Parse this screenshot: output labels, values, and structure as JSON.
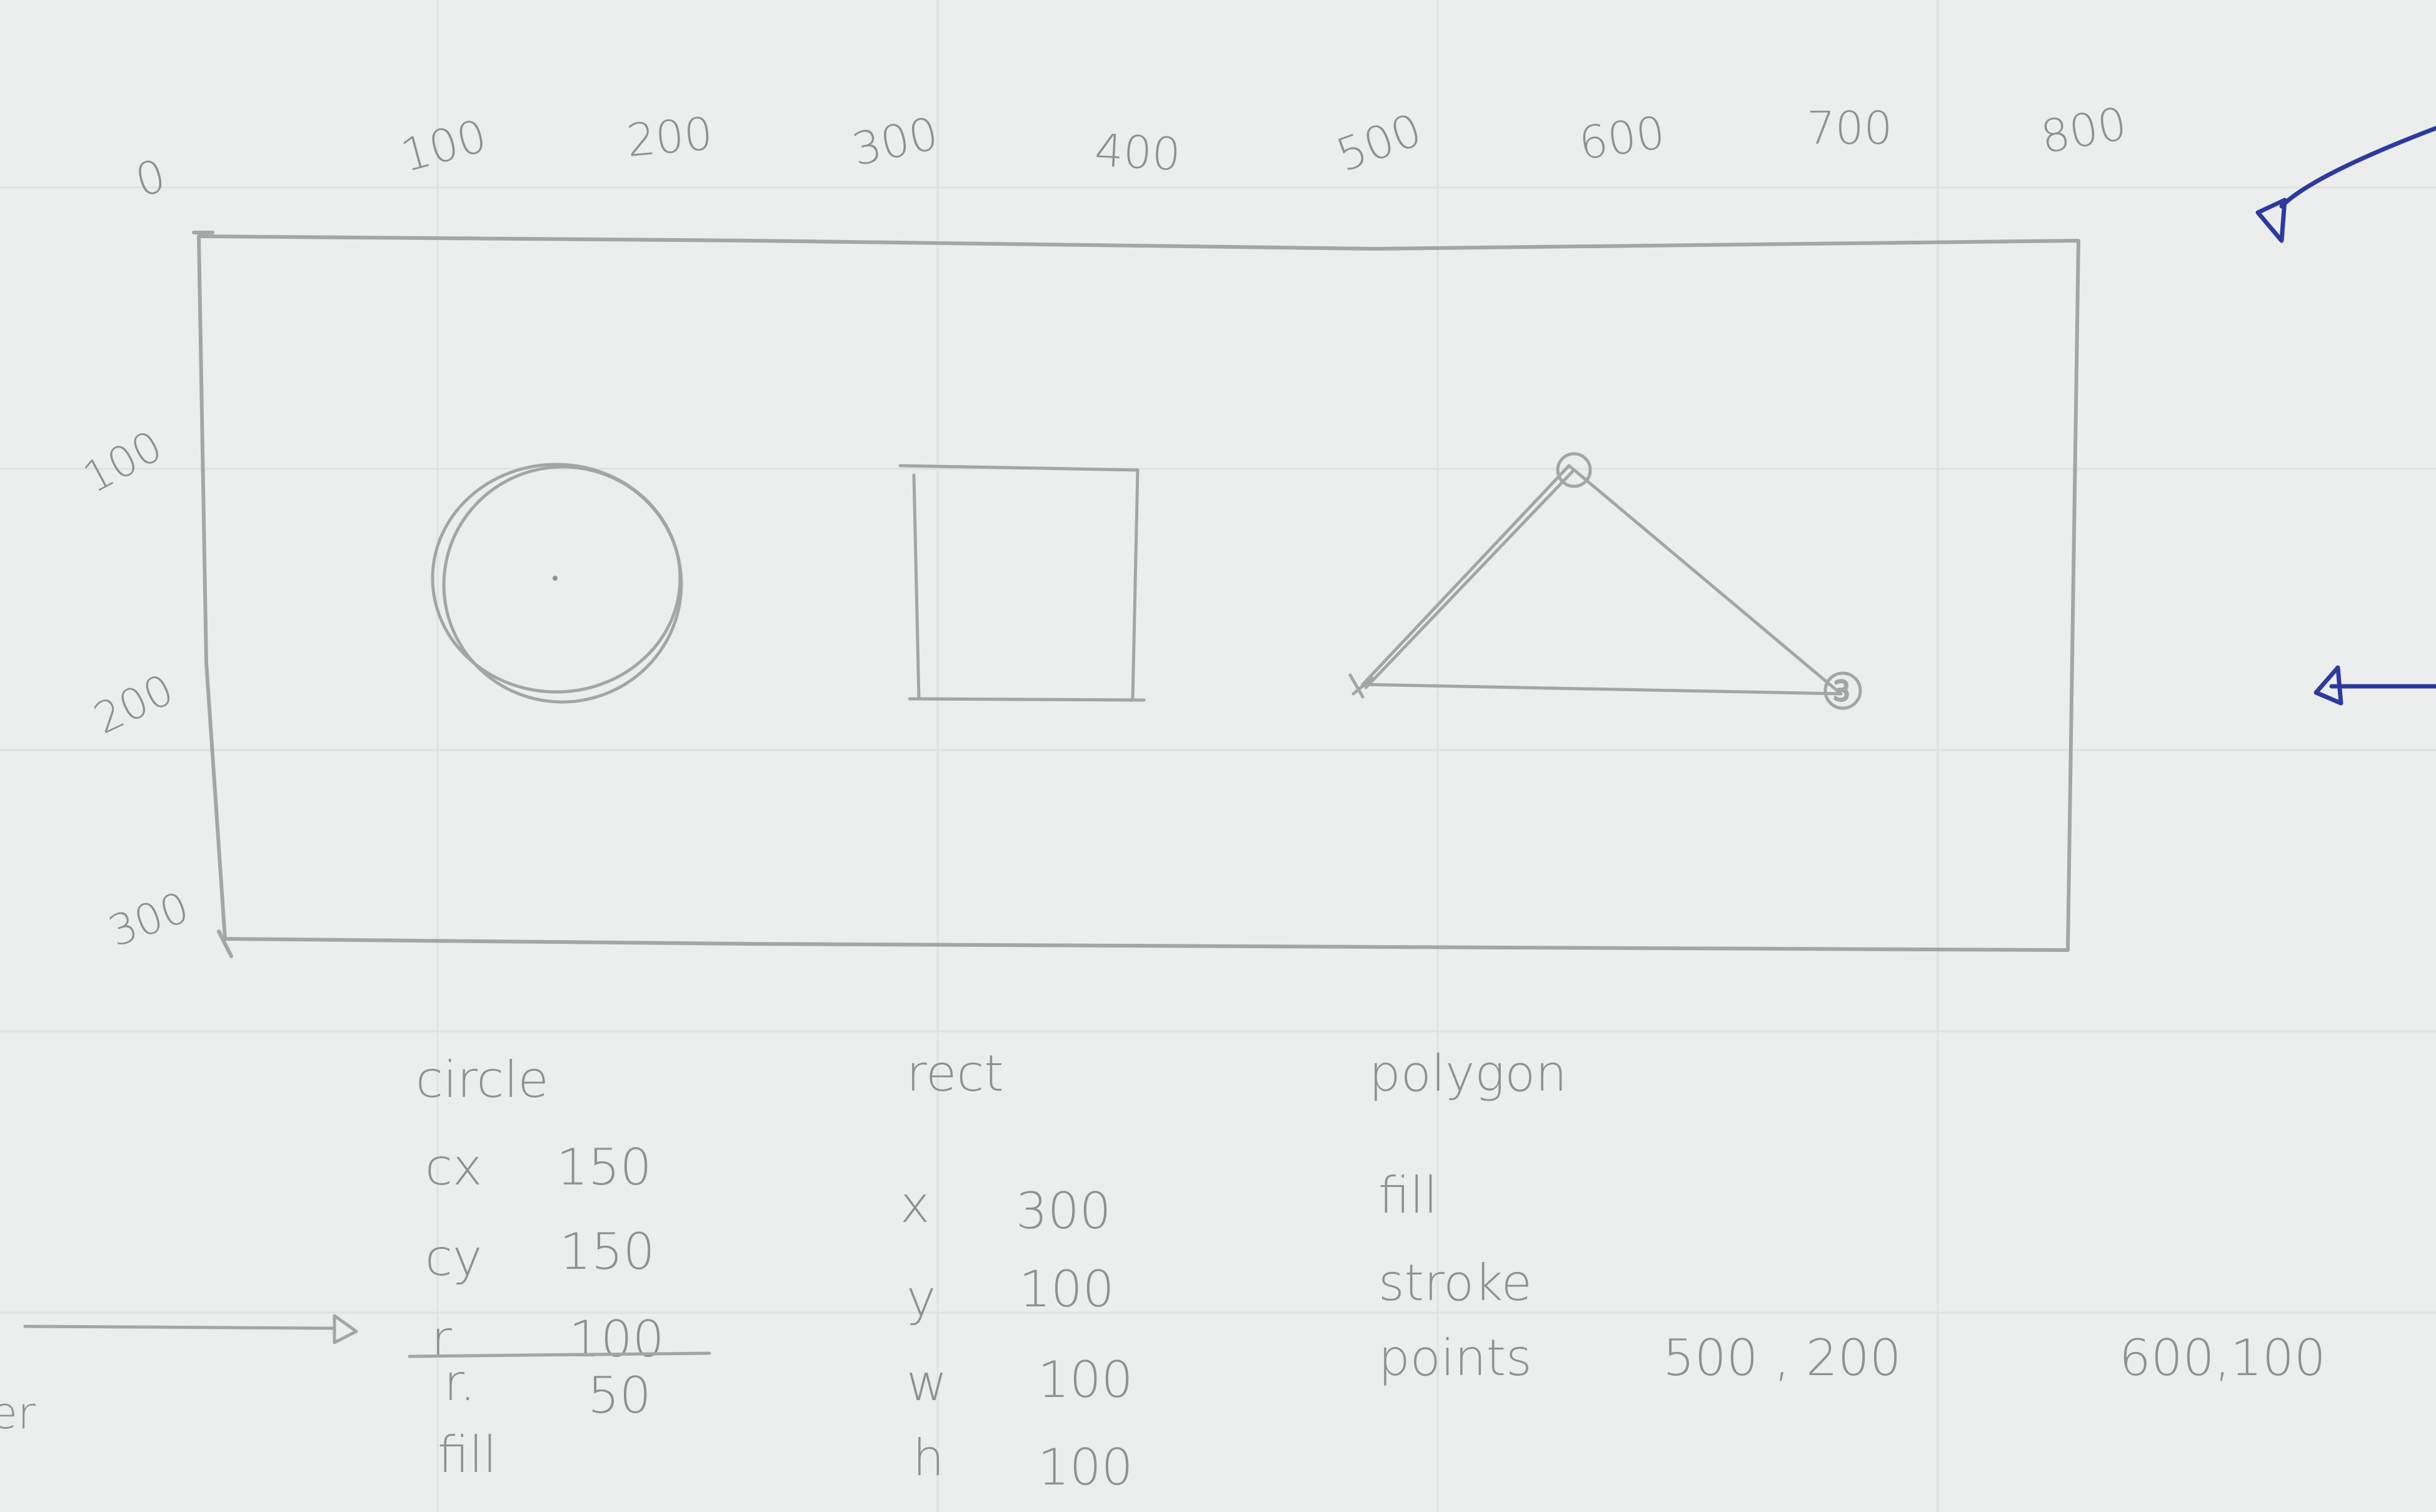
{
  "colors": {
    "paper": "#eceeed",
    "pencil": "#a3a6a4",
    "pencil_text": "#8e928f",
    "ink": "#2c3aa0"
  },
  "axis": {
    "x_ticks": [
      "0",
      "100",
      "200",
      "300",
      "400",
      "500",
      "600",
      "700",
      "800"
    ],
    "y_ticks": [
      "100",
      "200",
      "300"
    ]
  },
  "notes": {
    "circle": {
      "heading": "circle",
      "cx_label": "cx",
      "cx_value": "150",
      "cy_label": "cy",
      "cy_value": "150",
      "r_struck_label": "r",
      "r_struck_value": "100",
      "r_label": "r.",
      "r_value": "50",
      "fill_label": "fill"
    },
    "rect": {
      "heading": "rect",
      "x_label": "x",
      "x_value": "300",
      "y_label": "y",
      "y_value": "100",
      "w_label": "w",
      "w_value": "100",
      "h_label": "h",
      "h_value": "100"
    },
    "polygon": {
      "heading": "polygon",
      "fill_label": "fill",
      "stroke_label": "stroke",
      "points_label": "points",
      "point_1": "500 , 200",
      "point_2": "600,100"
    },
    "edge_fragment": "er"
  },
  "markers": {
    "vertex_3": "3"
  }
}
